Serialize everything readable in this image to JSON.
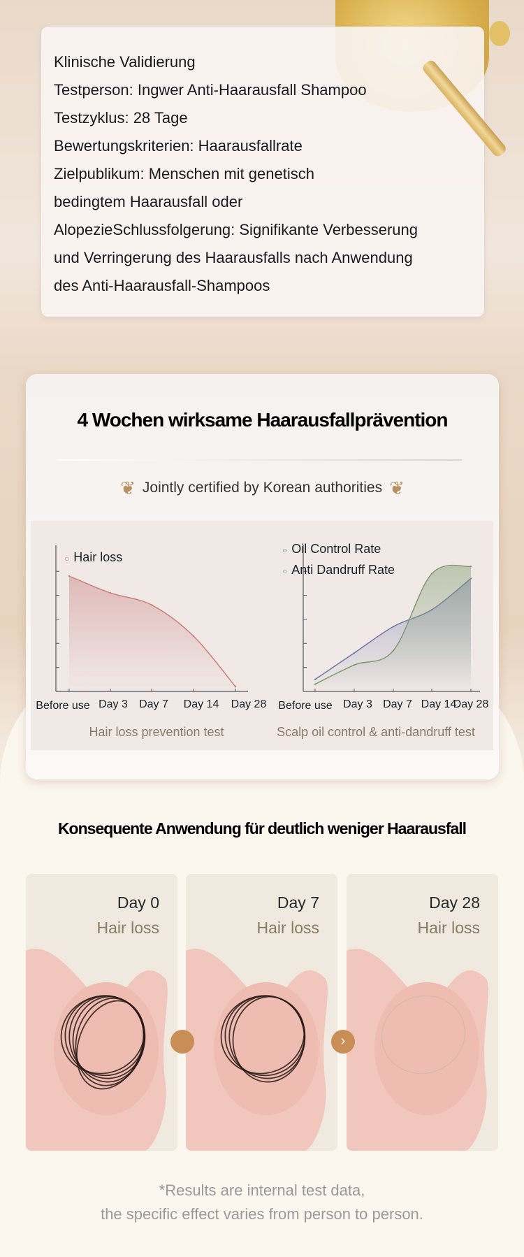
{
  "validation": {
    "lines": [
      "Klinische Validierung",
      "Testperson: Ingwer Anti-Haarausfall Shampoo",
      "Testzyklus: 28 Tage",
      "Bewertungskriterien: Haarausfallrate",
      "Zielpublikum: Menschen mit genetisch",
      "bedingtem Haarausfall oder",
      "AlopezieSchlussfolgerung: Signifikante Verbesserung",
      "und Verringerung des Haarausfalls nach Anwendung",
      "des Anti-Haarausfall-Shampoos"
    ]
  },
  "section1": {
    "title": "4 Wochen wirksame Haarausfallprävention",
    "certification": "Jointly certified by Korean authorities"
  },
  "chart_data": [
    {
      "type": "area",
      "categories": [
        "Before use",
        "Day 3",
        "Day 7",
        "Day 14",
        "Day 28"
      ],
      "series": [
        {
          "name": "Hair loss",
          "values": [
            4.8,
            4.1,
            3.6,
            2.3,
            0.2
          ],
          "color": "#c98080"
        }
      ],
      "ylim": [
        0,
        5.5
      ],
      "y_ticks_labeled": false,
      "caption": "Hair loss prevention test",
      "legend": "top-left"
    },
    {
      "type": "area",
      "categories": [
        "Before use",
        "Day 3",
        "Day 7",
        "Day 14",
        "Day 28"
      ],
      "series": [
        {
          "name": "Oil Control Rate",
          "values": [
            0.5,
            1.6,
            2.7,
            3.4,
            4.7
          ],
          "color": "#6f78a8"
        },
        {
          "name": "Anti Dandruff Rate",
          "values": [
            0.3,
            1.1,
            1.7,
            4.9,
            5.2
          ],
          "color": "#7f9a70"
        }
      ],
      "ylim": [
        0,
        5.5
      ],
      "y_ticks_labeled": false,
      "caption": "Scalp oil control & anti-dandruff test",
      "legend": "top-left"
    }
  ],
  "section2": {
    "title": "Konsequente Anwendung für deutlich weniger Haarausfall",
    "photos": [
      {
        "day": "Day 0",
        "label": "Hair loss",
        "hair_amount": 1.0
      },
      {
        "day": "Day 7",
        "label": "Hair loss",
        "hair_amount": 0.7
      },
      {
        "day": "Day 28",
        "label": "Hair loss",
        "hair_amount": 0.2
      }
    ],
    "arrow_icon": "chevron-right-icon",
    "disclaimer": [
      "*Results are internal test data,",
      "the specific effect varies from person to person."
    ]
  }
}
